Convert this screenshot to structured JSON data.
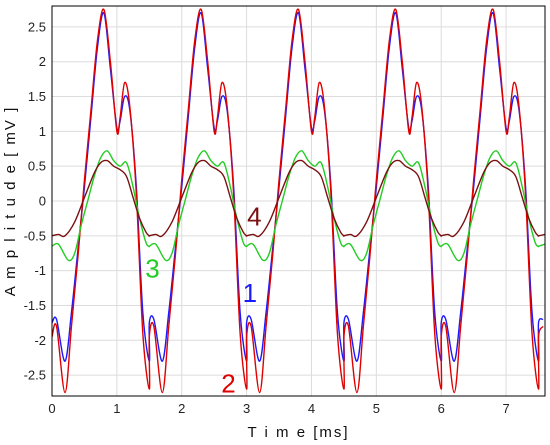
{
  "chart_data": {
    "type": "line",
    "xlabel": "T i m e [ms]",
    "ylabel": "A m p l i t u d e [ mV ]",
    "xlim": [
      0,
      7.6
    ],
    "ylim": [
      -2.8,
      2.8
    ],
    "xticks": [
      "0",
      "1",
      "2",
      "3",
      "4",
      "5",
      "6",
      "7"
    ],
    "yticks": [
      "2.5",
      "2",
      "1.5",
      "1",
      "0.5",
      "0",
      "-0.5",
      "-1",
      "-1.5",
      "-2",
      "-2.5"
    ],
    "grid": true,
    "period_ms": 1.5,
    "series": [
      {
        "id": "1",
        "color": "#1a1aff",
        "x": [
          0,
          0.07,
          0.2,
          0.3,
          0.4,
          0.5,
          0.6,
          0.7,
          0.8,
          0.9,
          1.0,
          1.05,
          1.12,
          1.2,
          1.3,
          1.4,
          1.5
        ],
        "y": [
          -1.75,
          -1.7,
          -2.3,
          -1.6,
          -0.7,
          0.2,
          1.2,
          2.2,
          2.7,
          1.9,
          1.05,
          1.15,
          1.5,
          1.3,
          0.2,
          -1.6,
          -2.3
        ]
      },
      {
        "id": "2",
        "color": "#e00000",
        "x": [
          0,
          0.07,
          0.2,
          0.3,
          0.4,
          0.5,
          0.6,
          0.7,
          0.8,
          0.9,
          1.0,
          1.05,
          1.12,
          1.2,
          1.3,
          1.4,
          1.5
        ],
        "y": [
          -1.95,
          -1.8,
          -2.75,
          -1.8,
          -0.8,
          0.3,
          1.3,
          2.3,
          2.75,
          2.0,
          1.0,
          1.2,
          1.7,
          1.35,
          0.1,
          -1.9,
          -2.7
        ]
      },
      {
        "id": "3",
        "color": "#22cc22",
        "x": [
          0,
          0.1,
          0.25,
          0.35,
          0.45,
          0.55,
          0.65,
          0.75,
          0.85,
          0.95,
          1.05,
          1.15,
          1.25,
          1.35,
          1.45,
          1.5
        ],
        "y": [
          -0.65,
          -0.62,
          -0.85,
          -0.75,
          -0.35,
          0.0,
          0.35,
          0.62,
          0.72,
          0.58,
          0.5,
          0.55,
          0.2,
          -0.25,
          -0.6,
          -0.65
        ]
      },
      {
        "id": "4",
        "color": "#7a1010",
        "x": [
          0,
          0.1,
          0.2,
          0.35,
          0.5,
          0.65,
          0.75,
          0.85,
          0.95,
          1.05,
          1.15,
          1.25,
          1.35,
          1.45,
          1.5
        ],
        "y": [
          -0.5,
          -0.48,
          -0.5,
          -0.3,
          0.05,
          0.4,
          0.55,
          0.58,
          0.5,
          0.45,
          0.35,
          0.05,
          -0.25,
          -0.45,
          -0.5
        ]
      }
    ],
    "annotations": [
      {
        "text": "1",
        "x": 3.05,
        "y": -1.45,
        "color": "#1a1aff"
      },
      {
        "text": "2",
        "x": 2.72,
        "y": -2.75,
        "color": "#e00000"
      },
      {
        "text": "3",
        "x": 1.55,
        "y": -1.1,
        "color": "#22cc22"
      },
      {
        "text": "4",
        "x": 3.12,
        "y": -0.35,
        "color": "#7a1010"
      }
    ]
  }
}
